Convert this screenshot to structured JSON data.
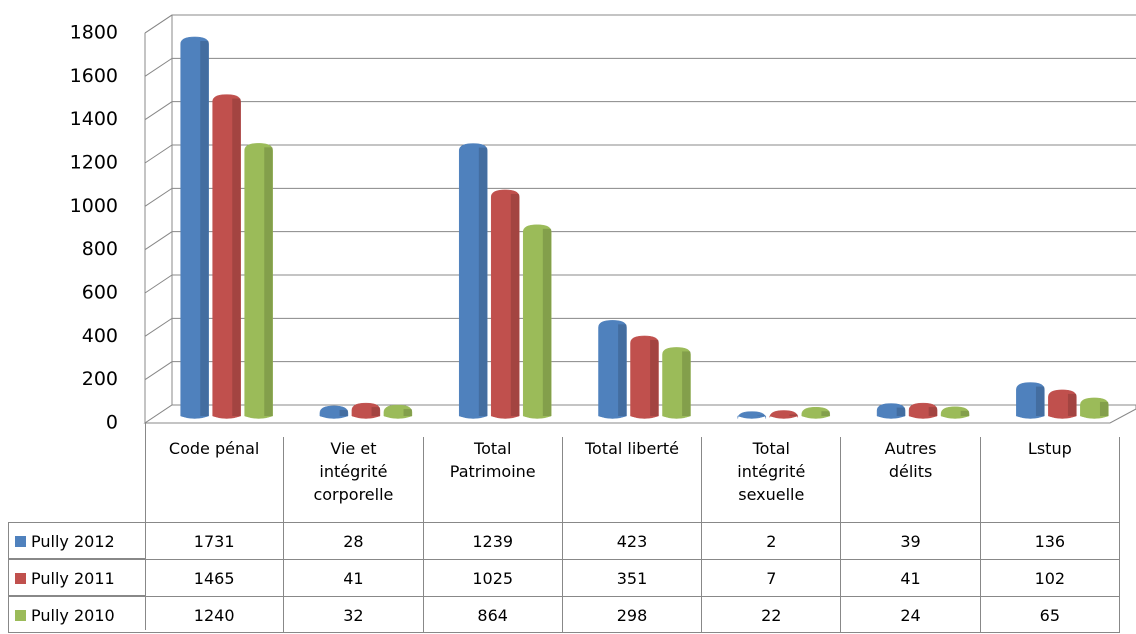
{
  "chart_data": {
    "type": "bar",
    "categories": [
      "Code pénal",
      "Vie et\nintégrité\ncorporelle",
      "Total\nPatrimoine",
      "Total liberté",
      "Total\nintégrité\nsexuelle",
      "Autres\ndélits",
      "Lstup"
    ],
    "series": [
      {
        "name": "Pully 2012",
        "color": "#4f81bd",
        "values": [
          1731,
          28,
          1239,
          423,
          2,
          39,
          136
        ]
      },
      {
        "name": "Pully 2011",
        "color": "#c0504d",
        "values": [
          1465,
          41,
          1025,
          351,
          7,
          41,
          102
        ]
      },
      {
        "name": "Pully 2010",
        "color": "#9bbb59",
        "values": [
          1240,
          32,
          864,
          298,
          22,
          24,
          65
        ]
      }
    ],
    "ylim": [
      0,
      1800
    ],
    "yticks": [
      0,
      200,
      400,
      600,
      800,
      1000,
      1200,
      1400,
      1600,
      1800
    ],
    "grid": true
  }
}
